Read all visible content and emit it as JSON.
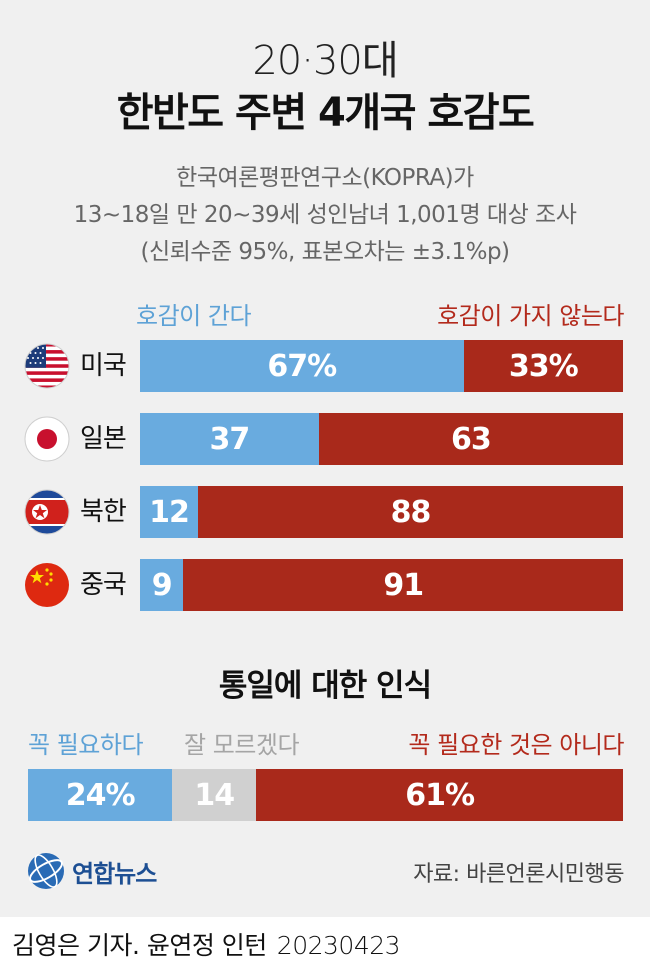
{
  "title_line1": "20·30대",
  "title_line2": "한반도 주변 4개국 호감도",
  "subtitle_lines": [
    "한국여론평판연구소(KOPRA)가",
    "13~18일 만 20~39세 성인남녀 1,001명 대상 조사",
    "(신뢰수준 95%, 표본오차는 ±3.1%p)"
  ],
  "chart_data": [
    {
      "type": "bar",
      "orientation": "horizontal",
      "stacked": true,
      "unit": "%",
      "categories": [
        "미국",
        "일본",
        "북한",
        "중국"
      ],
      "category_flags": [
        "us-flag-icon",
        "japan-flag-icon",
        "north-korea-flag-icon",
        "china-flag-icon"
      ],
      "series": [
        {
          "name": "호감이 간다",
          "color": "#69abdf",
          "values": [
            67,
            37,
            12,
            9
          ],
          "labels": [
            "67%",
            "37",
            "12",
            "9"
          ]
        },
        {
          "name": "호감이 가지 않는다",
          "color": "#a9291b",
          "values": [
            33,
            63,
            88,
            91
          ],
          "labels": [
            "33%",
            "63",
            "88",
            "91"
          ]
        }
      ],
      "legend_position": "top"
    },
    {
      "type": "bar",
      "orientation": "horizontal",
      "stacked": true,
      "unit": "%",
      "title": "통일에 대한 인식",
      "categories": [
        ""
      ],
      "series": [
        {
          "name": "꼭 필요하다",
          "color": "#69abdf",
          "values": [
            24
          ],
          "labels": [
            "24%"
          ]
        },
        {
          "name": "잘 모르겠다",
          "color": "#d0d0d0",
          "values": [
            14
          ],
          "labels": [
            "14"
          ]
        },
        {
          "name": "꼭 필요한 것은 아니다",
          "color": "#a9291b",
          "values": [
            61
          ],
          "labels": [
            "61%"
          ]
        }
      ],
      "legend_position": "top"
    }
  ],
  "logo_text": "연합뉴스",
  "source": "자료: 바른언론시민행동",
  "credit": "김영은 기자. 윤연정 인턴",
  "date": "20230423"
}
